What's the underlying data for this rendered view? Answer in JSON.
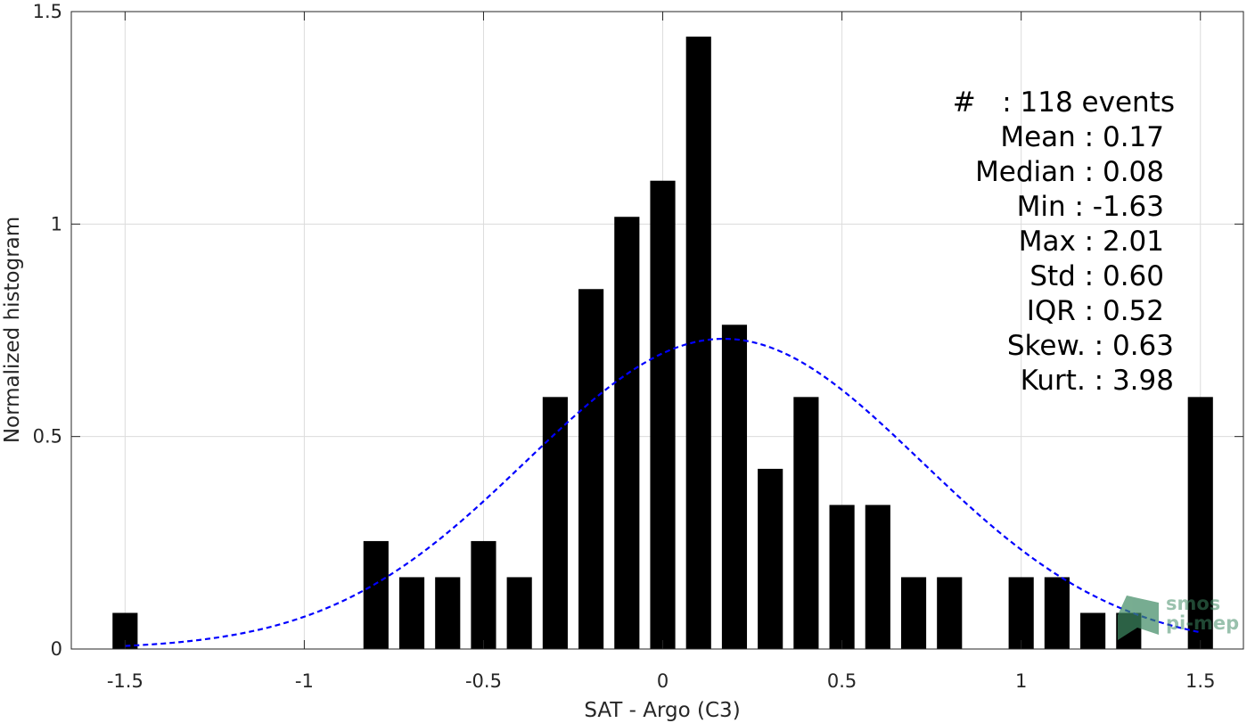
{
  "chart_data": {
    "type": "bar",
    "xlabel": "SAT - Argo (C3)",
    "ylabel": "Normalized histogram",
    "xlim": [
      -1.65,
      1.62
    ],
    "ylim": [
      0,
      1.5
    ],
    "grid": true,
    "xticks": [
      -1.5,
      -1,
      -0.5,
      0,
      0.5,
      1,
      1.5
    ],
    "xtick_labels": [
      "-1.5",
      "-1",
      "-0.5",
      "0",
      "0.5",
      "1",
      "1.5"
    ],
    "yticks": [
      0,
      0.5,
      1,
      1.5
    ],
    "ytick_labels": [
      "0",
      "0.5",
      "1",
      "1.5"
    ],
    "bar_color": "#000000",
    "bars": [
      {
        "x": -1.5,
        "y": 0.085
      },
      {
        "x": -0.8,
        "y": 0.254
      },
      {
        "x": -0.7,
        "y": 0.169
      },
      {
        "x": -0.6,
        "y": 0.169
      },
      {
        "x": -0.5,
        "y": 0.254
      },
      {
        "x": -0.4,
        "y": 0.169
      },
      {
        "x": -0.3,
        "y": 0.593
      },
      {
        "x": -0.2,
        "y": 0.847
      },
      {
        "x": -0.1,
        "y": 1.017
      },
      {
        "x": 0.0,
        "y": 1.102
      },
      {
        "x": 0.1,
        "y": 1.441
      },
      {
        "x": 0.2,
        "y": 0.763
      },
      {
        "x": 0.3,
        "y": 0.424
      },
      {
        "x": 0.4,
        "y": 0.593
      },
      {
        "x": 0.5,
        "y": 0.339
      },
      {
        "x": 0.6,
        "y": 0.339
      },
      {
        "x": 0.7,
        "y": 0.169
      },
      {
        "x": 0.8,
        "y": 0.169
      },
      {
        "x": 1.0,
        "y": 0.169
      },
      {
        "x": 1.1,
        "y": 0.169
      },
      {
        "x": 1.2,
        "y": 0.085
      },
      {
        "x": 1.3,
        "y": 0.085
      },
      {
        "x": 1.5,
        "y": 0.593
      }
    ],
    "bar_width": 0.07,
    "fit_curve": {
      "type": "gaussian",
      "mean": 0.17,
      "std": 0.55,
      "peak": 0.73,
      "x_range": [
        -1.5,
        1.5
      ],
      "color": "#0000ff",
      "style": "dashed"
    }
  },
  "stats": [
    {
      "key": "count",
      "text": "#   : 118 events"
    },
    {
      "key": "mean",
      "text": "Mean : 0.17"
    },
    {
      "key": "median",
      "text": "Median : 0.08"
    },
    {
      "key": "min",
      "text": "Min : -1.63"
    },
    {
      "key": "max",
      "text": "Max : 2.01"
    },
    {
      "key": "std",
      "text": "Std : 0.60"
    },
    {
      "key": "iqr",
      "text": "IQR : 0.52"
    },
    {
      "key": "skew",
      "text": "Skew. : 0.63"
    },
    {
      "key": "kurt",
      "text": "Kurt. : 3.98"
    }
  ],
  "logo": {
    "line1": "smos",
    "line2": "pi-mep"
  }
}
